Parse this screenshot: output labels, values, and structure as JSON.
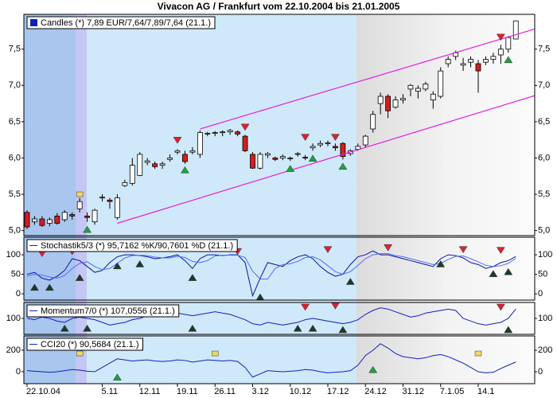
{
  "title": "Vivacon AG / Frankfurt vom 22.10.2004 bis 21.01.2005",
  "chart_data": [
    {
      "type": "candlestick",
      "label": "Candles (*) 7,89 EUR/7,64/7,89/7,64 (21.1.)",
      "color": "#1020c0",
      "categories": [
        "22.10.04",
        null,
        null,
        null,
        null,
        null,
        null,
        null,
        null,
        null,
        "5.11",
        null,
        null,
        null,
        null,
        "12.11",
        null,
        null,
        null,
        null,
        "19.11",
        null,
        null,
        null,
        null,
        "26.11",
        null,
        null,
        null,
        null,
        "3.12",
        null,
        null,
        null,
        null,
        "10.12",
        null,
        null,
        null,
        null,
        "17.12",
        null,
        null,
        null,
        null,
        "24.12",
        null,
        null,
        null,
        null,
        "31.12",
        null,
        null,
        null,
        null,
        "7.1.05",
        null,
        null,
        null,
        null,
        "14.1",
        null,
        null,
        null,
        null,
        null
      ],
      "open": [
        5.25,
        5.12,
        5.16,
        5.1,
        5.2,
        5.15,
        5.22,
        5.3,
        5.2,
        5.12,
        5.45,
        5.42,
        5.18,
        5.62,
        5.65,
        5.76,
        5.94,
        5.92,
        5.9,
        5.98,
        6.08,
        6.05,
        6.08,
        6.05,
        6.33,
        6.34,
        6.35,
        6.36,
        6.36,
        6.3,
        6.05,
        5.86,
        6.04,
        6.0,
        6.0,
        5.99,
        6.05,
        6.01,
        6.14,
        6.18,
        6.2,
        6.16,
        6.2,
        6.06,
        6.12,
        6.18,
        6.4,
        6.75,
        6.85,
        6.7,
        6.8,
        6.95,
        6.92,
        6.95,
        6.8,
        6.85,
        7.3,
        7.4,
        7.28,
        7.32,
        7.3,
        7.32,
        7.36,
        7.42,
        7.5,
        7.64
      ],
      "high": [
        5.28,
        5.2,
        5.2,
        5.18,
        5.24,
        5.28,
        5.25,
        5.45,
        5.25,
        5.3,
        5.5,
        5.45,
        5.5,
        5.7,
        6.0,
        6.08,
        6.0,
        5.95,
        5.95,
        6.05,
        6.12,
        6.1,
        6.15,
        6.38,
        6.36,
        6.37,
        6.38,
        6.4,
        6.38,
        6.32,
        6.08,
        6.08,
        6.08,
        6.02,
        6.05,
        6.02,
        6.08,
        6.04,
        6.2,
        6.24,
        6.24,
        6.2,
        6.22,
        6.12,
        6.2,
        6.32,
        6.65,
        6.9,
        6.88,
        6.85,
        6.88,
        7.02,
        7.0,
        7.05,
        6.92,
        7.25,
        7.4,
        7.48,
        7.38,
        7.4,
        7.35,
        7.4,
        7.45,
        7.56,
        7.68,
        7.89
      ],
      "low": [
        5.02,
        5.08,
        5.05,
        5.06,
        5.08,
        5.12,
        5.15,
        5.25,
        5.12,
        5.08,
        5.4,
        5.3,
        5.15,
        5.6,
        5.62,
        5.75,
        5.9,
        5.85,
        5.85,
        5.95,
        6.05,
        5.92,
        6.05,
        6.0,
        6.3,
        6.3,
        6.3,
        6.32,
        6.3,
        6.08,
        5.85,
        5.84,
        6.0,
        5.96,
        5.97,
        5.96,
        6.02,
        5.97,
        6.1,
        6.15,
        6.16,
        6.1,
        5.98,
        6.03,
        6.1,
        6.15,
        6.35,
        6.6,
        6.55,
        6.68,
        6.75,
        6.85,
        6.82,
        6.92,
        6.68,
        6.82,
        7.25,
        7.35,
        7.2,
        7.25,
        6.9,
        7.28,
        7.3,
        7.3,
        7.45,
        7.64
      ],
      "close": [
        5.05,
        5.16,
        5.07,
        5.15,
        5.1,
        5.25,
        5.2,
        5.4,
        5.18,
        5.28,
        5.46,
        5.4,
        5.45,
        5.66,
        5.9,
        6.05,
        5.96,
        5.88,
        5.92,
        6.0,
        6.1,
        5.95,
        6.1,
        6.35,
        6.34,
        6.35,
        6.36,
        6.38,
        6.33,
        6.1,
        5.86,
        6.05,
        6.06,
        5.98,
        6.02,
        6.0,
        6.06,
        6.0,
        6.16,
        6.2,
        6.21,
        6.14,
        6.02,
        6.1,
        6.16,
        6.3,
        6.6,
        6.85,
        6.65,
        6.8,
        6.82,
        7.0,
        6.96,
        7.02,
        6.88,
        7.2,
        7.36,
        7.45,
        7.3,
        7.36,
        7.2,
        7.36,
        7.4,
        7.5,
        7.66,
        7.89
      ],
      "ylim": [
        4.93,
        7.98
      ],
      "yticks": [
        {
          "value": 5,
          "label": "5,0"
        },
        {
          "value": 5.5,
          "label": "5,5"
        },
        {
          "value": 6,
          "label": "6,0"
        },
        {
          "value": 6.5,
          "label": "6,5"
        },
        {
          "value": 7,
          "label": "7,0"
        },
        {
          "value": 7.5,
          "label": "7,5"
        }
      ],
      "channels": [
        {
          "x": [
            12,
            65
          ],
          "values": [
            5.1,
            6.78
          ],
          "color": "#e020e0"
        },
        {
          "x": [
            23,
            65
          ],
          "values": [
            6.4,
            7.7
          ],
          "color": "#e020e0"
        }
      ],
      "sell_signals": [
        {
          "x": 20,
          "value": 6.2
        },
        {
          "x": 29,
          "value": 6.38
        },
        {
          "x": 37,
          "value": 6.24
        },
        {
          "x": 41,
          "value": 6.24
        },
        {
          "x": 63,
          "value": 7.62
        }
      ],
      "buy_signals": [
        {
          "x": 8,
          "value": 5.06
        },
        {
          "x": 21,
          "value": 5.88
        },
        {
          "x": 35,
          "value": 5.9
        },
        {
          "x": 38,
          "value": 6.04
        },
        {
          "x": 42,
          "value": 5.93
        },
        {
          "x": 64,
          "value": 7.4
        }
      ],
      "neutral_signals": [
        {
          "x": 7,
          "value": 5.5
        }
      ],
      "sell_color": "#e02030",
      "buy_color": "#20a040",
      "neutral_color": "#f0d860"
    },
    {
      "type": "line",
      "label": "Stochastik5/3 (*) 95,7162 %K/90,7601 %D (21.1.)",
      "color": "#1020c0",
      "series": [
        {
          "color": "#1010a0",
          "values": [
            50,
            55,
            40,
            35,
            45,
            60,
            90,
            85,
            70,
            55,
            60,
            80,
            95,
            100,
            100,
            98,
            95,
            90,
            92,
            95,
            100,
            85,
            65,
            90,
            100,
            100,
            98,
            100,
            100,
            80,
            -5,
            40,
            80,
            75,
            70,
            85,
            95,
            100,
            90,
            70,
            55,
            45,
            50,
            75,
            95,
            100,
            110,
            100,
            100,
            95,
            90,
            85,
            80,
            75,
            70,
            90,
            100,
            98,
            92,
            80,
            75,
            65,
            70,
            80,
            85,
            95.7162
          ]
        },
        {
          "color": "#4a6cff",
          "values": [
            45,
            50,
            48,
            43,
            40,
            47,
            65,
            78,
            82,
            70,
            62,
            65,
            78,
            92,
            98,
            99,
            98,
            94,
            92,
            92,
            96,
            93,
            83,
            80,
            85,
            97,
            99,
            99,
            99,
            93,
            58,
            38,
            38,
            65,
            75,
            77,
            83,
            93,
            95,
            87,
            72,
            57,
            50,
            57,
            73,
            90,
            100,
            103,
            103,
            98,
            95,
            90,
            85,
            80,
            75,
            78,
            88,
            96,
            97,
            90,
            82,
            73,
            70,
            72,
            78,
            90.7601
          ]
        }
      ],
      "ylim": [
        -16,
        145
      ],
      "yticks": [
        0,
        50,
        100
      ],
      "sell_signals": [
        {
          "x": 2,
          "value": 95
        },
        {
          "x": 6,
          "value": 100
        },
        {
          "x": 28,
          "value": 100
        },
        {
          "x": 40,
          "value": 105
        },
        {
          "x": 48,
          "value": 110
        },
        {
          "x": 58,
          "value": 105
        },
        {
          "x": 63,
          "value": 103
        }
      ],
      "buy_signals": [
        {
          "x": 1,
          "value": 25
        },
        {
          "x": 3,
          "value": 25
        },
        {
          "x": 7,
          "value": 50
        },
        {
          "x": 12,
          "value": 80
        },
        {
          "x": 15,
          "value": 85
        },
        {
          "x": 22,
          "value": 50
        },
        {
          "x": 31,
          "value": 0
        },
        {
          "x": 43,
          "value": 40
        },
        {
          "x": 55,
          "value": 85
        },
        {
          "x": 62,
          "value": 60
        },
        {
          "x": 64,
          "value": 65
        }
      ],
      "sell_color": "#e02030",
      "buy_color": "#1c3a2c"
    },
    {
      "type": "line",
      "label": "Momentum7/0 (*) 107,0556 (21.1.)",
      "color": "#1020c0",
      "series": [
        {
          "color": "#1020c0",
          "values": [
            100,
            99,
            101,
            100,
            98,
            97,
            100,
            101,
            100,
            99,
            97,
            95,
            96,
            97,
            99,
            100,
            102,
            103,
            102,
            103,
            104,
            103,
            102,
            103,
            104,
            105,
            104,
            103,
            101,
            99,
            96,
            95,
            97,
            96,
            95,
            96,
            97,
            99,
            100,
            99,
            98,
            97,
            96,
            97,
            99,
            103,
            106,
            108,
            107,
            105,
            103,
            101,
            102,
            104,
            105,
            106,
            107,
            106,
            100,
            98,
            96,
            95,
            96,
            97,
            100,
            107.0556
          ]
        }
      ],
      "ylim": [
        88,
        112
      ],
      "yticks": [
        100
      ],
      "sell_signals": [
        {
          "x": 37,
          "value": 106
        },
        {
          "x": 41,
          "value": 107
        },
        {
          "x": 63,
          "value": 106
        }
      ],
      "buy_signals": [
        {
          "x": 5,
          "value": 95
        },
        {
          "x": 8,
          "value": 95
        },
        {
          "x": 22,
          "value": 95
        },
        {
          "x": 36,
          "value": 95
        },
        {
          "x": 38,
          "value": 95
        },
        {
          "x": 42,
          "value": 94
        },
        {
          "x": 64,
          "value": 94
        }
      ],
      "sell_color": "#e02030",
      "buy_color": "#1c3a2c"
    },
    {
      "type": "line",
      "label": "CCI20 (*) 90,5684 (21.1.)",
      "color": "#1020c0",
      "series": [
        {
          "color": "#1020c0",
          "values": [
            10,
            5,
            0,
            -5,
            0,
            10,
            20,
            15,
            5,
            0,
            40,
            80,
            120,
            110,
            100,
            105,
            110,
            100,
            95,
            100,
            110,
            105,
            90,
            100,
            110,
            105,
            100,
            105,
            95,
            40,
            -50,
            -20,
            10,
            5,
            0,
            5,
            10,
            20,
            15,
            0,
            -10,
            -5,
            0,
            10,
            60,
            150,
            200,
            260,
            220,
            170,
            140,
            130,
            120,
            130,
            150,
            160,
            140,
            110,
            80,
            40,
            0,
            -10,
            -5,
            30,
            60,
            90.5684
          ]
        }
      ],
      "ylim": [
        -111,
        333
      ],
      "yticks": [
        0,
        200
      ],
      "buy_signals": [
        {
          "x": 12,
          "value": -20
        },
        {
          "x": 46,
          "value": 50
        }
      ],
      "neutral_signals": [
        {
          "x": 7,
          "value": 170
        },
        {
          "x": 25,
          "value": 170
        },
        {
          "x": 60,
          "value": 170
        }
      ],
      "buy_color": "#20a040",
      "neutral_color": "#f0d860"
    }
  ]
}
